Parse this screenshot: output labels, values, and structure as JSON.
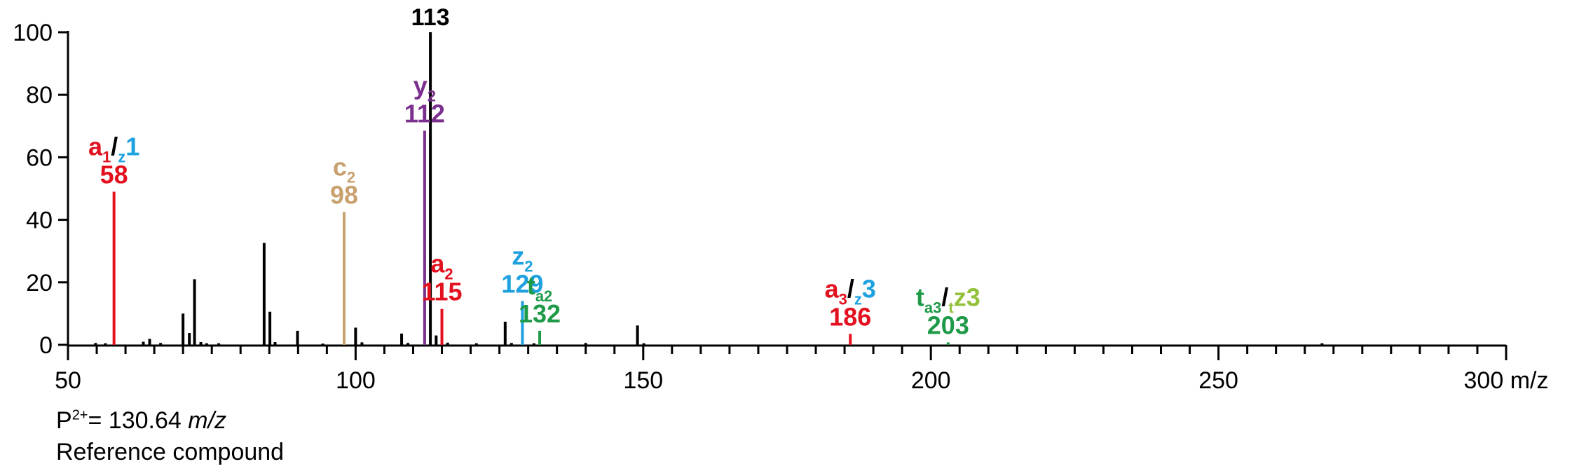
{
  "colors": {
    "a": "#e3111f",
    "z": "#1da1e0",
    "c": "#c8a16e",
    "y": "#7b2f8e",
    "t_a": "#1e9a48",
    "t_z": "#93c13b",
    "base": "#000000"
  },
  "caption": {
    "precursor_symbol": "P",
    "precursor_charge": "2+",
    "precursor_eq": "= 130.64 ",
    "precursor_unit": "m/z",
    "compound": "Reference compound"
  },
  "chart_data": {
    "type": "bar",
    "xlabel": "m/z",
    "xlim": [
      50,
      300
    ],
    "ylim": [
      0,
      100
    ],
    "x_ticks": [
      50,
      100,
      150,
      200,
      250,
      300
    ],
    "x_tick_labels": [
      "50",
      "100",
      "150",
      "200",
      "250",
      "300 m/z"
    ],
    "y_ticks": [
      0,
      20,
      40,
      60,
      80,
      100
    ],
    "y_tick_labels": [
      "0",
      "20",
      "40",
      "60",
      "80",
      "100"
    ],
    "peaks": [
      {
        "mz": 54.8,
        "intensity": 0.6
      },
      {
        "mz": 56.5,
        "intensity": 0.5
      },
      {
        "mz": 63.1,
        "intensity": 1.0
      },
      {
        "mz": 64.2,
        "intensity": 1.9
      },
      {
        "mz": 66.1,
        "intensity": 0.6
      },
      {
        "mz": 70.0,
        "intensity": 10.0
      },
      {
        "mz": 71.1,
        "intensity": 3.8
      },
      {
        "mz": 72.0,
        "intensity": 21.0
      },
      {
        "mz": 73.1,
        "intensity": 0.9
      },
      {
        "mz": 74.1,
        "intensity": 0.5
      },
      {
        "mz": 76.2,
        "intensity": 0.5
      },
      {
        "mz": 84.1,
        "intensity": 32.6
      },
      {
        "mz": 85.1,
        "intensity": 10.6
      },
      {
        "mz": 86.0,
        "intensity": 0.9
      },
      {
        "mz": 89.9,
        "intensity": 4.5
      },
      {
        "mz": 94.3,
        "intensity": 0.4
      },
      {
        "mz": 100.0,
        "intensity": 5.5
      },
      {
        "mz": 101.1,
        "intensity": 0.8
      },
      {
        "mz": 108.0,
        "intensity": 3.6
      },
      {
        "mz": 109.1,
        "intensity": 0.6
      },
      {
        "mz": 113.0,
        "intensity": 100.0
      },
      {
        "mz": 114.0,
        "intensity": 3.0
      },
      {
        "mz": 116.0,
        "intensity": 0.7
      },
      {
        "mz": 121.0,
        "intensity": 0.5
      },
      {
        "mz": 126.0,
        "intensity": 7.4
      },
      {
        "mz": 127.1,
        "intensity": 0.6
      },
      {
        "mz": 131.0,
        "intensity": 0.5
      },
      {
        "mz": 140.0,
        "intensity": 0.6
      },
      {
        "mz": 149.0,
        "intensity": 6.2
      },
      {
        "mz": 150.1,
        "intensity": 0.5
      },
      {
        "mz": 268.0,
        "intensity": 0.5
      }
    ],
    "annotated_peaks": [
      {
        "mz": 58.0,
        "intensity": 49.0,
        "color_key": "a",
        "ion_label": [
          "a",
          "1",
          "/",
          "z",
          "1"
        ],
        "ion_colors": [
          "a",
          "a",
          "base",
          "z",
          "z"
        ],
        "mz_label": "58"
      },
      {
        "mz": 98.0,
        "intensity": 42.5,
        "color_key": "c",
        "ion_label": [
          "c",
          "2"
        ],
        "ion_colors": [
          "c",
          "c"
        ],
        "mz_label": "98"
      },
      {
        "mz": 112.0,
        "intensity": 68.5,
        "color_key": "y",
        "ion_label": [
          "y",
          "2"
        ],
        "ion_colors": [
          "y",
          "y"
        ],
        "mz_label": "112"
      },
      {
        "mz": 115.0,
        "intensity": 11.5,
        "color_key": "a",
        "ion_label": [
          "a",
          "2"
        ],
        "ion_colors": [
          "a",
          "a"
        ],
        "mz_label": "115"
      },
      {
        "mz": 129.0,
        "intensity": 14.0,
        "color_key": "z",
        "ion_label": [
          "z",
          "2"
        ],
        "ion_colors": [
          "z",
          "z"
        ],
        "mz_label": "129"
      },
      {
        "mz": 132.0,
        "intensity": 4.5,
        "color_key": "t_a",
        "ion_label": [
          "t",
          "a2"
        ],
        "ion_colors": [
          "t_a",
          "t_a"
        ],
        "mz_label": "132"
      },
      {
        "mz": 186.0,
        "intensity": 3.5,
        "color_key": "a",
        "ion_label": [
          "a",
          "3",
          "/",
          "z",
          "3"
        ],
        "ion_colors": [
          "a",
          "a",
          "base",
          "z",
          "z"
        ],
        "mz_label": "186"
      },
      {
        "mz": 203.0,
        "intensity": 0.8,
        "color_key": "t_a",
        "ion_label": [
          "t",
          "a3",
          "/",
          "t",
          "z3"
        ],
        "ion_colors": [
          "t_a",
          "t_a",
          "base",
          "t_z",
          "t_z"
        ],
        "mz_label": "203"
      }
    ],
    "base_peak_label": {
      "mz": 113.0,
      "label": "113"
    }
  }
}
